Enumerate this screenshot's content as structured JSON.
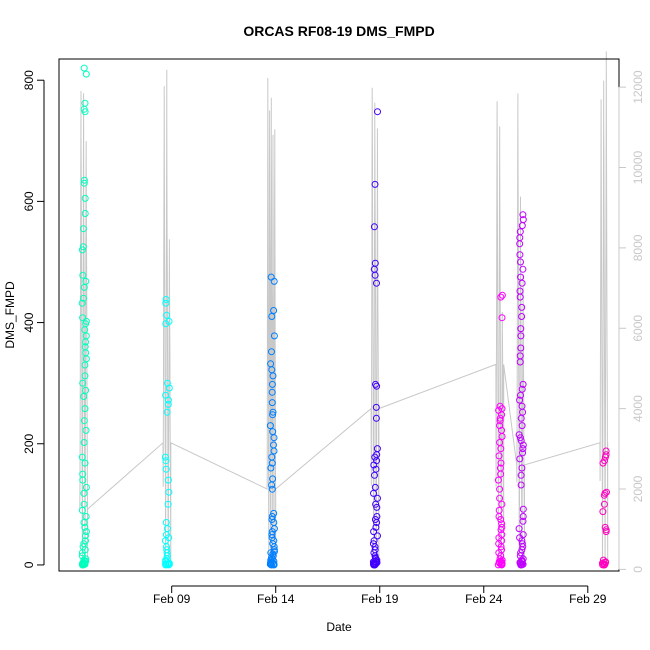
{
  "chart_data": {
    "type": "scatter",
    "title": "ORCAS RF08-19 DMS_FMPD",
    "xlabel": "Date",
    "ylabel": "DMS_FMPD",
    "xlim": [
      "2016-02-03T14:00",
      "2016-03-01T12:00"
    ],
    "ylim": [
      -10,
      835
    ],
    "y2lim": [
      -40,
      12700
    ],
    "x_ticks": [
      {
        "date": "2016-02-09",
        "label": "Feb 09"
      },
      {
        "date": "2016-02-14",
        "label": "Feb 14"
      },
      {
        "date": "2016-02-19",
        "label": "Feb 19"
      },
      {
        "date": "2016-02-24",
        "label": "Feb 24"
      },
      {
        "date": "2016-02-29",
        "label": "Feb 29"
      }
    ],
    "y_ticks": [
      0,
      200,
      400,
      600,
      800
    ],
    "y2_ticks": [
      0,
      2000,
      4000,
      6000,
      8000,
      10000,
      12000
    ],
    "colors": {
      "flight_colors": [
        "#00ffbf",
        "#00ffff",
        "#0080ff",
        "#4000ff",
        "#ff00ff",
        "#bf00ff",
        "#ff00bf"
      ],
      "altitude_line": "#c8c8c8",
      "axis": "#000000"
    },
    "flights": [
      {
        "start": "2016-02-04T14:00",
        "end": "2016-02-04T23:00",
        "values": [
          820,
          810,
          762,
          752,
          748,
          635,
          630,
          605,
          580,
          555,
          525,
          520,
          478,
          468,
          458,
          440,
          432,
          408,
          402,
          398,
          388,
          378,
          368,
          360,
          350,
          340,
          330,
          312,
          300,
          288,
          278,
          258,
          238,
          222,
          202,
          178,
          168,
          150,
          140,
          128,
          118,
          100,
          90,
          80,
          70,
          62,
          55,
          48,
          40,
          35,
          30,
          25,
          20,
          15,
          10,
          8,
          6,
          5,
          4,
          3,
          2,
          2,
          1,
          1,
          0,
          0,
          0,
          0
        ]
      },
      {
        "start": "2016-02-08T14:00",
        "end": "2016-02-08T23:00",
        "values": [
          438,
          432,
          412,
          402,
          398,
          300,
          292,
          280,
          272,
          265,
          252,
          178,
          172,
          158,
          140,
          120,
          100,
          70,
          60,
          50,
          45,
          40,
          30,
          25,
          20,
          15,
          10,
          8,
          5,
          3,
          2,
          1,
          1,
          0,
          0,
          0
        ]
      },
      {
        "start": "2016-02-13T15:00",
        "end": "2016-02-14T00:00",
        "values": [
          475,
          468,
          420,
          410,
          378,
          352,
          332,
          322,
          312,
          298,
          285,
          268,
          252,
          248,
          230,
          220,
          210,
          198,
          188,
          178,
          168,
          160,
          142,
          132,
          125,
          85,
          80,
          75,
          70,
          60,
          55,
          50,
          45,
          40,
          35,
          30,
          25,
          22,
          20,
          18,
          15,
          12,
          10,
          8,
          6,
          5,
          4,
          3,
          2,
          1,
          1,
          0,
          0,
          0,
          0
        ]
      },
      {
        "start": "2016-02-18T14:00",
        "end": "2016-02-18T23:00",
        "values": [
          748,
          628,
          558,
          498,
          488,
          478,
          465,
          298,
          295,
          260,
          242,
          192,
          182,
          178,
          172,
          165,
          158,
          148,
          128,
          118,
          110,
          100,
          95,
          80,
          75,
          70,
          62,
          55,
          48,
          40,
          35,
          30,
          25,
          20,
          15,
          12,
          10,
          8,
          6,
          5,
          4,
          3,
          2,
          1,
          1,
          0,
          0,
          0,
          0
        ]
      },
      {
        "start": "2016-02-24T14:00",
        "end": "2016-02-24T23:00",
        "values": [
          445,
          442,
          408,
          262,
          258,
          255,
          248,
          242,
          238,
          230,
          222,
          212,
          202,
          192,
          180,
          168,
          160,
          150,
          140,
          125,
          110,
          100,
          90,
          80,
          75,
          68,
          62,
          58,
          50,
          45,
          40,
          35,
          30,
          25,
          20,
          15,
          10,
          8,
          6,
          5,
          4,
          3,
          2,
          1,
          0,
          0,
          0
        ]
      },
      {
        "start": "2016-02-25T14:00",
        "end": "2016-02-25T23:00",
        "values": [
          578,
          570,
          560,
          550,
          540,
          530,
          512,
          500,
          488,
          475,
          465,
          452,
          442,
          425,
          410,
          390,
          378,
          358,
          345,
          335,
          298,
          290,
          280,
          272,
          262,
          252,
          242,
          230,
          215,
          210,
          205,
          198,
          192,
          185,
          175,
          160,
          148,
          132,
          92,
          80,
          72,
          60,
          50,
          45,
          40,
          35,
          30,
          25,
          20,
          15,
          10,
          8,
          6,
          5,
          4,
          3,
          2,
          1,
          0,
          0,
          0
        ]
      },
      {
        "start": "2016-02-29T14:00",
        "end": "2016-02-29T23:00",
        "values": [
          188,
          182,
          178,
          172,
          168,
          120,
          118,
          115,
          100,
          88,
          62,
          58,
          55,
          8,
          5,
          4,
          3,
          2,
          1,
          1,
          0,
          0,
          0,
          0
        ]
      }
    ],
    "altitude": [
      {
        "start": "2016-02-04T14:00",
        "end": "2016-02-04T23:00",
        "peaks": [
          12300,
          12000,
          11600
        ],
        "mid_level": 1500
      },
      {
        "start": "2016-02-08T14:00",
        "end": "2016-02-08T23:00",
        "peaks": [
          12300,
          12500,
          8400
        ],
        "mid_level": 3150
      },
      {
        "start": "2016-02-13T14:00",
        "end": "2016-02-14T00:00",
        "peaks": [
          12400,
          12200,
          11900,
          11600,
          11500
        ],
        "mid_level": 2000
      },
      {
        "start": "2016-02-18T14:00",
        "end": "2016-02-18T23:00",
        "peaks": [
          12300,
          12700,
          11000
        ],
        "mid_level": 4000
      },
      {
        "start": "2016-02-24T14:00",
        "end": "2016-02-24T23:00",
        "peaks": [
          12200,
          11500,
          6800
        ],
        "mid_level": 5100
      },
      {
        "start": "2016-02-25T14:00",
        "end": "2016-02-25T23:00",
        "peaks": [
          12100,
          9600,
          7500
        ],
        "mid_level": 2600
      },
      {
        "start": "2016-02-29T14:00",
        "end": "2016-02-29T23:00",
        "peaks": [
          12500,
          12700,
          12900
        ],
        "mid_level": 3150
      }
    ],
    "legend": "none",
    "grid": false
  }
}
